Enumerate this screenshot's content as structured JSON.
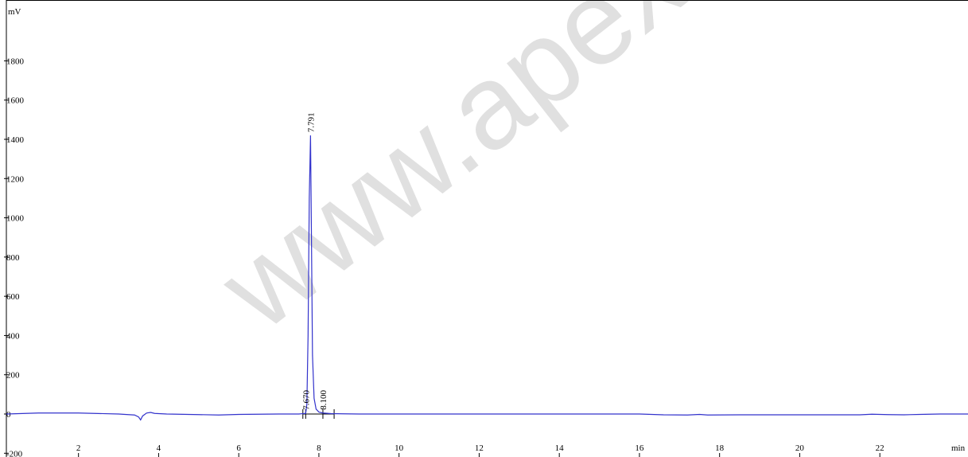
{
  "chart_data": {
    "type": "line",
    "title": "",
    "ylabel": "mV",
    "xlabel": "min",
    "xlim": [
      0.2,
      24.2
    ],
    "ylim": [
      -200,
      2000
    ],
    "x_ticks": [
      2,
      4,
      6,
      8,
      10,
      12,
      14,
      16,
      18,
      20,
      22
    ],
    "y_ticks": [
      -200,
      0,
      200,
      400,
      600,
      800,
      1000,
      1200,
      1400,
      1600,
      1800
    ],
    "grid": false,
    "legend": "none",
    "line_color": "#3333cc",
    "series": [
      {
        "x": [
          0.2,
          1.0,
          2.0,
          3.0,
          3.4,
          3.5,
          3.55,
          3.6,
          3.7,
          3.8,
          3.9,
          4.2,
          5.0,
          5.5,
          6.0,
          7.0,
          7.5,
          7.67,
          7.7,
          7.73,
          7.76,
          7.791,
          7.81,
          7.84,
          7.88,
          7.93,
          8.0,
          8.1,
          8.3,
          8.6,
          9.0,
          10.0,
          12.0,
          14.0,
          16.0,
          16.6,
          17.2,
          17.5,
          17.7,
          18.5,
          20.0,
          21.5,
          21.8,
          22.2,
          22.6,
          23.0,
          23.5,
          24.2
        ],
        "y": [
          0,
          5,
          5,
          0,
          -5,
          -15,
          -30,
          -10,
          5,
          8,
          3,
          0,
          -3,
          -5,
          -2,
          0,
          0,
          3,
          50,
          400,
          1100,
          1420,
          1000,
          300,
          80,
          25,
          10,
          5,
          2,
          1,
          0,
          0,
          0,
          0,
          0,
          -4,
          -5,
          -2,
          -5,
          -4,
          -4,
          -4,
          -1,
          -3,
          -4,
          -2,
          0,
          0
        ]
      }
    ],
    "peak_labels": [
      {
        "x": 7.67,
        "y": 5,
        "text": "7.670"
      },
      {
        "x": 7.791,
        "y": 1420,
        "text": "7.791"
      },
      {
        "x": 8.1,
        "y": 5,
        "text": "8.100"
      }
    ],
    "integration_markers": [
      7.6,
      7.67,
      8.1,
      8.38
    ]
  },
  "watermark": "www.apex"
}
